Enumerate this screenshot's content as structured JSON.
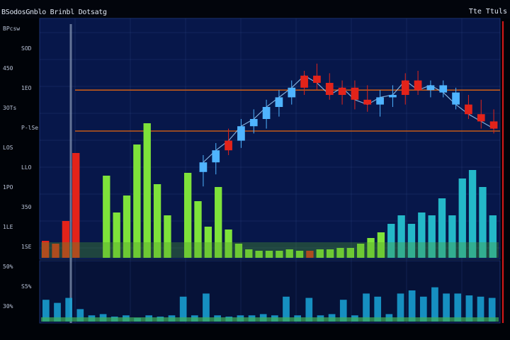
{
  "header": {
    "title": "BSodosGnblo Brinbl Dotsatg",
    "right_label": "Tte Ttuls"
  },
  "left_axis": {
    "labels": [
      "BPcsw",
      "SOD",
      "450",
      "1EO",
      "3OTs",
      "P-lSe",
      "LOS",
      "LLO",
      "1PO",
      "350",
      "1LE",
      "1SE",
      "50%",
      "S5%",
      "30%"
    ]
  },
  "colors": {
    "background": "#000308",
    "panel": "#07174a",
    "grid": "#304a86",
    "up_candle": "#4fb4ff",
    "down_candle": "#e3231a",
    "level_line": "#c45a18",
    "volume_green": "#7ee23a",
    "volume_red": "#e3231a",
    "volume_teal": "#24b8c8",
    "right_border": "#d61818"
  },
  "chart_data": [
    {
      "type": "candlestick",
      "title": "",
      "candles": [
        {
          "o": 0.48,
          "h": 0.55,
          "l": 0.42,
          "c": 0.52,
          "dir": "up"
        },
        {
          "o": 0.52,
          "h": 0.6,
          "l": 0.47,
          "c": 0.57,
          "dir": "up"
        },
        {
          "o": 0.57,
          "h": 0.66,
          "l": 0.55,
          "c": 0.61,
          "dir": "down"
        },
        {
          "o": 0.61,
          "h": 0.7,
          "l": 0.58,
          "c": 0.67,
          "dir": "up"
        },
        {
          "o": 0.67,
          "h": 0.74,
          "l": 0.64,
          "c": 0.7,
          "dir": "up"
        },
        {
          "o": 0.7,
          "h": 0.78,
          "l": 0.66,
          "c": 0.75,
          "dir": "up"
        },
        {
          "o": 0.75,
          "h": 0.82,
          "l": 0.71,
          "c": 0.79,
          "dir": "up"
        },
        {
          "o": 0.79,
          "h": 0.86,
          "l": 0.76,
          "c": 0.83,
          "dir": "up"
        },
        {
          "o": 0.83,
          "h": 0.9,
          "l": 0.8,
          "c": 0.88,
          "dir": "down"
        },
        {
          "o": 0.88,
          "h": 0.93,
          "l": 0.82,
          "c": 0.85,
          "dir": "down"
        },
        {
          "o": 0.85,
          "h": 0.89,
          "l": 0.78,
          "c": 0.8,
          "dir": "down"
        },
        {
          "o": 0.8,
          "h": 0.86,
          "l": 0.76,
          "c": 0.83,
          "dir": "down"
        },
        {
          "o": 0.83,
          "h": 0.86,
          "l": 0.74,
          "c": 0.78,
          "dir": "down"
        },
        {
          "o": 0.78,
          "h": 0.84,
          "l": 0.73,
          "c": 0.76,
          "dir": "down"
        },
        {
          "o": 0.76,
          "h": 0.82,
          "l": 0.71,
          "c": 0.79,
          "dir": "up"
        },
        {
          "o": 0.79,
          "h": 0.84,
          "l": 0.75,
          "c": 0.8,
          "dir": "up"
        },
        {
          "o": 0.8,
          "h": 0.89,
          "l": 0.76,
          "c": 0.86,
          "dir": "down"
        },
        {
          "o": 0.86,
          "h": 0.9,
          "l": 0.8,
          "c": 0.82,
          "dir": "down"
        },
        {
          "o": 0.82,
          "h": 0.86,
          "l": 0.79,
          "c": 0.84,
          "dir": "up"
        },
        {
          "o": 0.84,
          "h": 0.86,
          "l": 0.79,
          "c": 0.81,
          "dir": "up"
        },
        {
          "o": 0.81,
          "h": 0.83,
          "l": 0.74,
          "c": 0.76,
          "dir": "up"
        },
        {
          "o": 0.76,
          "h": 0.8,
          "l": 0.7,
          "c": 0.72,
          "dir": "down"
        },
        {
          "o": 0.72,
          "h": 0.78,
          "l": 0.66,
          "c": 0.69,
          "dir": "down"
        },
        {
          "o": 0.69,
          "h": 0.74,
          "l": 0.64,
          "c": 0.66,
          "dir": "down"
        }
      ],
      "levels": [
        0.82,
        0.65
      ]
    },
    {
      "type": "bar",
      "title": "",
      "values": [
        0.12,
        0.1,
        0.26,
        0.74,
        0.0,
        0.0,
        0.58,
        0.32,
        0.44,
        0.8,
        0.95,
        0.52,
        0.3,
        0.0,
        0.6,
        0.4,
        0.22,
        0.5,
        0.2,
        0.1,
        0.06,
        0.05,
        0.05,
        0.05,
        0.06,
        0.05,
        0.05,
        0.06,
        0.06,
        0.07,
        0.07,
        0.1,
        0.14,
        0.18,
        0.24,
        0.3,
        0.24,
        0.32,
        0.3,
        0.42,
        0.3,
        0.56,
        0.62,
        0.5,
        0.3
      ],
      "colors": [
        "red",
        "red",
        "red",
        "red",
        "none",
        "none",
        "green",
        "green",
        "green",
        "green",
        "green",
        "green",
        "green",
        "none",
        "green",
        "green",
        "green",
        "green",
        "green",
        "green",
        "green",
        "green",
        "green",
        "green",
        "green",
        "green",
        "red",
        "green",
        "green",
        "green",
        "green",
        "green",
        "green",
        "green",
        "teal",
        "teal",
        "teal",
        "teal",
        "teal",
        "teal",
        "teal",
        "teal",
        "teal",
        "teal",
        "teal"
      ]
    },
    {
      "type": "bar",
      "title": "",
      "values": [
        0.35,
        0.3,
        0.38,
        0.2,
        0.1,
        0.12,
        0.08,
        0.1,
        0.06,
        0.1,
        0.08,
        0.1,
        0.4,
        0.1,
        0.45,
        0.1,
        0.08,
        0.1,
        0.1,
        0.12,
        0.1,
        0.4,
        0.1,
        0.38,
        0.1,
        0.12,
        0.35,
        0.1,
        0.45,
        0.4,
        0.12,
        0.45,
        0.5,
        0.4,
        0.55,
        0.45,
        0.45,
        0.42,
        0.4,
        0.38
      ]
    }
  ]
}
